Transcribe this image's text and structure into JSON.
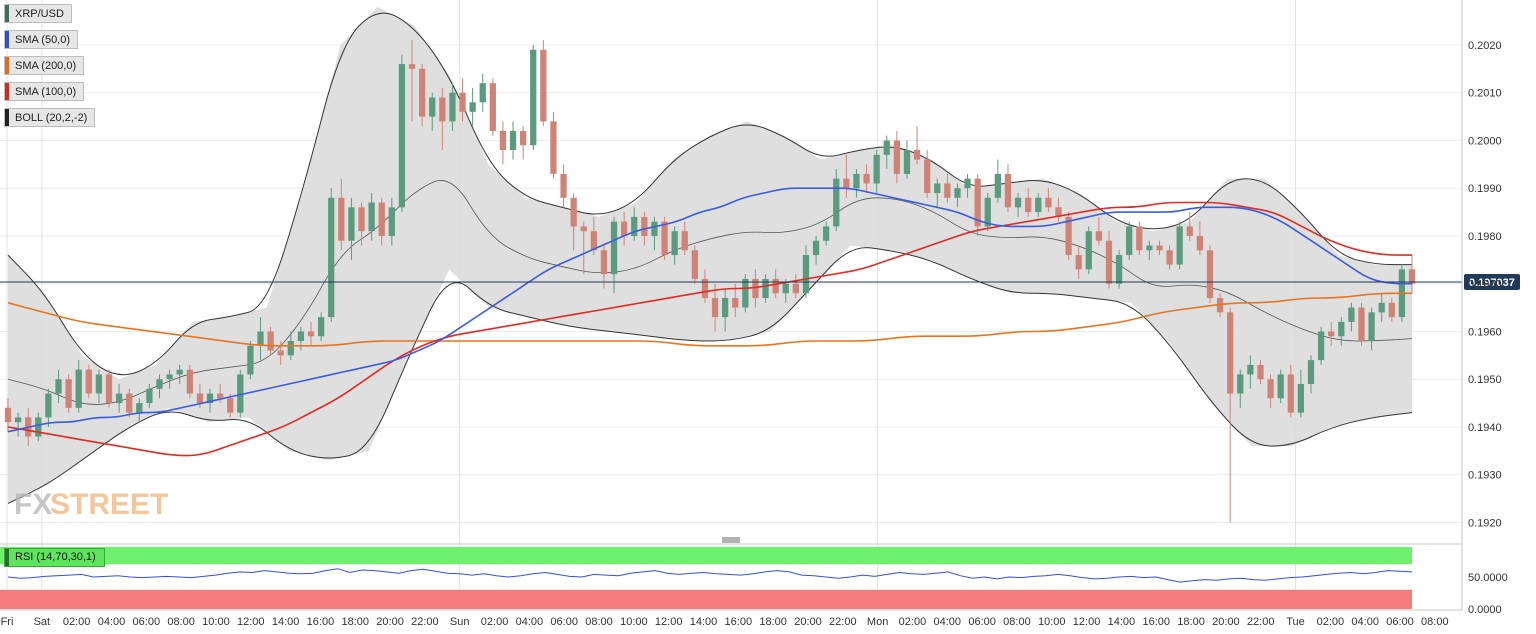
{
  "legend": [
    {
      "label": "XRP/USD",
      "color": "#3f6b57"
    },
    {
      "label": "SMA (50,0)",
      "color": "#2f4fd1"
    },
    {
      "label": "SMA (200,0)",
      "color": "#e36b1a"
    },
    {
      "label": "SMA (100,0)",
      "color": "#d9261c"
    },
    {
      "label": "BOLL (20,2,-2)",
      "color": "#222222"
    }
  ],
  "watermark": {
    "fx": "FX",
    "street": "STREET"
  },
  "rsi_label": "RSI (14,70,30,1)",
  "colors": {
    "up": "#5b9a7e",
    "down": "#cf8377",
    "sma50": "#3b5ce0",
    "sma100": "#e02a22",
    "sma200": "#e7751f",
    "boll": "#333333",
    "band_fill": "#d9d9d9",
    "rsi_line": "#3350d8",
    "rsi_over": "#6df06d",
    "rsi_under": "#f47c7c",
    "price_tag": "#203a5c"
  },
  "chart_data": {
    "type": "candlestick",
    "ylim": [
      0.1918,
      0.2029
    ],
    "yticks": [
      "0.2020",
      "0.2010",
      "0.2000",
      "0.1990",
      "0.1980",
      "0.1970",
      "0.1960",
      "0.1950",
      "0.1940",
      "0.1930",
      "0.1920"
    ],
    "current_price": "0.197037",
    "xticks": [
      "Fri",
      "Sat",
      "02:00",
      "04:00",
      "06:00",
      "08:00",
      "10:00",
      "12:00",
      "14:00",
      "16:00",
      "18:00",
      "20:00",
      "22:00",
      "Sun",
      "02:00",
      "04:00",
      "06:00",
      "08:00",
      "10:00",
      "12:00",
      "14:00",
      "16:00",
      "18:00",
      "20:00",
      "22:00",
      "Mon",
      "02:00",
      "04:00",
      "06:00",
      "08:00",
      "10:00",
      "12:00",
      "14:00",
      "16:00",
      "18:00",
      "20:00",
      "22:00",
      "Tue",
      "02:00",
      "04:00",
      "06:00",
      "08:00"
    ],
    "candles": [
      [
        0.1944,
        0.1946,
        0.1939,
        0.1941
      ],
      [
        0.1941,
        0.1943,
        0.1938,
        0.1942
      ],
      [
        0.1942,
        0.1944,
        0.1936,
        0.1938
      ],
      [
        0.1938,
        0.1943,
        0.1937,
        0.1942
      ],
      [
        0.1942,
        0.1948,
        0.194,
        0.1947
      ],
      [
        0.1947,
        0.1952,
        0.1945,
        0.195
      ],
      [
        0.195,
        0.1951,
        0.1943,
        0.1944
      ],
      [
        0.1944,
        0.1954,
        0.1943,
        0.1952
      ],
      [
        0.1952,
        0.1953,
        0.1946,
        0.1947
      ],
      [
        0.1947,
        0.1952,
        0.1945,
        0.1951
      ],
      [
        0.1951,
        0.1952,
        0.1944,
        0.1945
      ],
      [
        0.1945,
        0.1949,
        0.1943,
        0.1947
      ],
      [
        0.1947,
        0.1948,
        0.1942,
        0.1943
      ],
      [
        0.1943,
        0.1946,
        0.1941,
        0.1945
      ],
      [
        0.1945,
        0.1949,
        0.1944,
        0.1948
      ],
      [
        0.1948,
        0.1951,
        0.1946,
        0.195
      ],
      [
        0.195,
        0.1952,
        0.1948,
        0.1951
      ],
      [
        0.1951,
        0.1953,
        0.1949,
        0.1952
      ],
      [
        0.1952,
        0.1953,
        0.1946,
        0.1947
      ],
      [
        0.1947,
        0.1949,
        0.1944,
        0.1945
      ],
      [
        0.1945,
        0.1948,
        0.1943,
        0.1947
      ],
      [
        0.1947,
        0.1949,
        0.1945,
        0.1946
      ],
      [
        0.1946,
        0.1947,
        0.1942,
        0.1943
      ],
      [
        0.1943,
        0.1952,
        0.1942,
        0.1951
      ],
      [
        0.1951,
        0.1958,
        0.195,
        0.1957
      ],
      [
        0.1957,
        0.1963,
        0.1954,
        0.196
      ],
      [
        0.196,
        0.1961,
        0.1955,
        0.1956
      ],
      [
        0.1956,
        0.1958,
        0.1953,
        0.1955
      ],
      [
        0.1955,
        0.196,
        0.1954,
        0.1958
      ],
      [
        0.1958,
        0.1961,
        0.1956,
        0.196
      ],
      [
        0.196,
        0.1962,
        0.1957,
        0.1959
      ],
      [
        0.1959,
        0.1964,
        0.1958,
        0.1963
      ],
      [
        0.1963,
        0.199,
        0.1962,
        0.1988
      ],
      [
        0.1988,
        0.1992,
        0.1977,
        0.1979
      ],
      [
        0.1979,
        0.1988,
        0.1975,
        0.1986
      ],
      [
        0.1986,
        0.1987,
        0.1978,
        0.1981
      ],
      [
        0.1981,
        0.1989,
        0.1979,
        0.1987
      ],
      [
        0.1987,
        0.1988,
        0.1978,
        0.198
      ],
      [
        0.198,
        0.1988,
        0.1978,
        0.1986
      ],
      [
        0.1986,
        0.2018,
        0.1985,
        0.2016
      ],
      [
        0.2016,
        0.2021,
        0.2004,
        0.2015
      ],
      [
        0.2015,
        0.2016,
        0.2003,
        0.2005
      ],
      [
        0.2005,
        0.201,
        0.2002,
        0.2009
      ],
      [
        0.2009,
        0.2011,
        0.1998,
        0.2004
      ],
      [
        0.2004,
        0.2012,
        0.2002,
        0.201
      ],
      [
        0.201,
        0.2013,
        0.2004,
        0.2006
      ],
      [
        0.2006,
        0.2011,
        0.2003,
        0.2008
      ],
      [
        0.2008,
        0.2014,
        0.2006,
        0.2012
      ],
      [
        0.2012,
        0.2013,
        0.2001,
        0.2002
      ],
      [
        0.2002,
        0.2004,
        0.1995,
        0.1998
      ],
      [
        0.1998,
        0.2004,
        0.1996,
        0.2002
      ],
      [
        0.2002,
        0.2003,
        0.1996,
        0.1999
      ],
      [
        0.1999,
        0.202,
        0.1998,
        0.2019
      ],
      [
        0.2019,
        0.2021,
        0.2003,
        0.2004
      ],
      [
        0.2004,
        0.2006,
        0.1992,
        0.1993
      ],
      [
        0.1993,
        0.1995,
        0.1986,
        0.1988
      ],
      [
        0.1988,
        0.1989,
        0.1977,
        0.1982
      ],
      [
        0.1982,
        0.1983,
        0.1972,
        0.1981
      ],
      [
        0.1981,
        0.1984,
        0.1976,
        0.1977
      ],
      [
        0.1977,
        0.1978,
        0.1969,
        0.1972
      ],
      [
        0.1972,
        0.1984,
        0.1968,
        0.1983
      ],
      [
        0.1983,
        0.1985,
        0.1978,
        0.198
      ],
      [
        0.198,
        0.1986,
        0.1979,
        0.1984
      ],
      [
        0.1984,
        0.1985,
        0.1978,
        0.198
      ],
      [
        0.198,
        0.1984,
        0.1977,
        0.1983
      ],
      [
        0.1983,
        0.1984,
        0.1975,
        0.1976
      ],
      [
        0.1976,
        0.1982,
        0.1974,
        0.1981
      ],
      [
        0.1981,
        0.1983,
        0.1976,
        0.1977
      ],
      [
        0.1977,
        0.1978,
        0.197,
        0.1971
      ],
      [
        0.1971,
        0.1973,
        0.1966,
        0.1967
      ],
      [
        0.1967,
        0.197,
        0.196,
        0.1963
      ],
      [
        0.1963,
        0.1969,
        0.196,
        0.1967
      ],
      [
        0.1967,
        0.197,
        0.1963,
        0.1965
      ],
      [
        0.1965,
        0.1972,
        0.1964,
        0.1971
      ],
      [
        0.1971,
        0.1973,
        0.1965,
        0.1967
      ],
      [
        0.1967,
        0.1972,
        0.1966,
        0.1971
      ],
      [
        0.1971,
        0.1973,
        0.1967,
        0.1968
      ],
      [
        0.1968,
        0.1971,
        0.1966,
        0.197
      ],
      [
        0.197,
        0.1972,
        0.1967,
        0.1968
      ],
      [
        0.1968,
        0.1978,
        0.1967,
        0.1976
      ],
      [
        0.1976,
        0.198,
        0.1974,
        0.1979
      ],
      [
        0.1979,
        0.1983,
        0.1978,
        0.1982
      ],
      [
        0.1982,
        0.1994,
        0.1981,
        0.1992
      ],
      [
        0.1992,
        0.1997,
        0.1988,
        0.199
      ],
      [
        0.199,
        0.1994,
        0.1988,
        0.1993
      ],
      [
        0.1993,
        0.1995,
        0.1989,
        0.1991
      ],
      [
        0.1991,
        0.1998,
        0.1989,
        0.1997
      ],
      [
        0.1997,
        0.2001,
        0.1994,
        0.2
      ],
      [
        0.2,
        0.2002,
        0.1991,
        0.1993
      ],
      [
        0.1993,
        0.2,
        0.1992,
        0.1998
      ],
      [
        0.1998,
        0.2003,
        0.1995,
        0.1996
      ],
      [
        0.1996,
        0.1998,
        0.1988,
        0.1989
      ],
      [
        0.1989,
        0.1992,
        0.1986,
        0.1991
      ],
      [
        0.1991,
        0.1993,
        0.1987,
        0.1988
      ],
      [
        0.1988,
        0.1991,
        0.1986,
        0.199
      ],
      [
        0.199,
        0.1993,
        0.1988,
        0.1992
      ],
      [
        0.1992,
        0.1993,
        0.198,
        0.1982
      ],
      [
        0.1982,
        0.1989,
        0.1981,
        0.1988
      ],
      [
        0.1988,
        0.1996,
        0.1987,
        0.1993
      ],
      [
        0.1993,
        0.1995,
        0.1985,
        0.1986
      ],
      [
        0.1986,
        0.1989,
        0.1984,
        0.1988
      ],
      [
        0.1988,
        0.199,
        0.1984,
        0.1985
      ],
      [
        0.1985,
        0.1989,
        0.1984,
        0.1988
      ],
      [
        0.1988,
        0.199,
        0.1985,
        0.1986
      ],
      [
        0.1986,
        0.1988,
        0.1983,
        0.1984
      ],
      [
        0.1984,
        0.1985,
        0.1975,
        0.1976
      ],
      [
        0.1976,
        0.1978,
        0.1971,
        0.1973
      ],
      [
        0.1973,
        0.1982,
        0.1972,
        0.1981
      ],
      [
        0.1981,
        0.1984,
        0.1978,
        0.1979
      ],
      [
        0.1979,
        0.1981,
        0.1969,
        0.197
      ],
      [
        0.197,
        0.1977,
        0.1969,
        0.1976
      ],
      [
        0.1976,
        0.1983,
        0.1975,
        0.1982
      ],
      [
        0.1982,
        0.1983,
        0.1976,
        0.1977
      ],
      [
        0.1977,
        0.1979,
        0.1975,
        0.1978
      ],
      [
        0.1978,
        0.1979,
        0.1976,
        0.1977
      ],
      [
        0.1977,
        0.1978,
        0.1973,
        0.1974
      ],
      [
        0.1974,
        0.1983,
        0.1973,
        0.1982
      ],
      [
        0.1982,
        0.1985,
        0.1979,
        0.198
      ],
      [
        0.198,
        0.1983,
        0.1976,
        0.1977
      ],
      [
        0.1977,
        0.1978,
        0.1966,
        0.1967
      ],
      [
        0.1967,
        0.1968,
        0.1963,
        0.1964
      ],
      [
        0.1964,
        0.1965,
        0.192,
        0.1947
      ],
      [
        0.1947,
        0.1952,
        0.1944,
        0.1951
      ],
      [
        0.1951,
        0.1955,
        0.1948,
        0.1953
      ],
      [
        0.1953,
        0.1954,
        0.1949,
        0.195
      ],
      [
        0.195,
        0.1951,
        0.1944,
        0.1946
      ],
      [
        0.1946,
        0.1952,
        0.1945,
        0.1951
      ],
      [
        0.1951,
        0.1953,
        0.1942,
        0.1943
      ],
      [
        0.1943,
        0.1952,
        0.1942,
        0.1949
      ],
      [
        0.1949,
        0.1955,
        0.1947,
        0.1954
      ],
      [
        0.1954,
        0.1961,
        0.1953,
        0.196
      ],
      [
        0.196,
        0.1962,
        0.1957,
        0.1959
      ],
      [
        0.1959,
        0.1963,
        0.1957,
        0.1962
      ],
      [
        0.1962,
        0.1966,
        0.196,
        0.1965
      ],
      [
        0.1965,
        0.1966,
        0.1957,
        0.1958
      ],
      [
        0.1958,
        0.1965,
        0.1956,
        0.1964
      ],
      [
        0.1964,
        0.1968,
        0.1962,
        0.1966
      ],
      [
        0.1966,
        0.1967,
        0.1962,
        0.1963
      ],
      [
        0.1963,
        0.1974,
        0.1962,
        0.1973
      ],
      [
        0.1973,
        0.1976,
        0.1968,
        0.197
      ]
    ],
    "sma50": [
      0.1939,
      0.194,
      0.1941,
      0.1941,
      0.1942,
      0.1942,
      0.1943,
      0.1943,
      0.1944,
      0.1945,
      0.1946,
      0.1947,
      0.1948,
      0.1949,
      0.195,
      0.1951,
      0.1952,
      0.1953,
      0.1954,
      0.1956,
      0.1958,
      0.1961,
      0.1964,
      0.1967,
      0.197,
      0.1973,
      0.1975,
      0.1977,
      0.1979,
      0.1981,
      0.1982,
      0.1983,
      0.1985,
      0.1986,
      0.1988,
      0.1989,
      0.199,
      0.199,
      0.199,
      0.199,
      0.1989,
      0.1988,
      0.1987,
      0.1986,
      0.1985,
      0.1983,
      0.1982,
      0.1982,
      0.1982,
      0.1983,
      0.1984,
      0.1985,
      0.1985,
      0.1985,
      0.1985,
      0.1986,
      0.1986,
      0.1986,
      0.1985,
      0.1983,
      0.198,
      0.1977,
      0.1974,
      0.1971,
      0.197,
      0.197
    ],
    "sma100": [
      0.194,
      0.1939,
      0.1938,
      0.1937,
      0.1936,
      0.1935,
      0.1934,
      0.1934,
      0.1936,
      0.1938,
      0.194,
      0.1943,
      0.1946,
      0.195,
      0.1954,
      0.1957,
      0.1959,
      0.196,
      0.1961,
      0.1962,
      0.1963,
      0.1964,
      0.1965,
      0.1966,
      0.1967,
      0.1968,
      0.1969,
      0.1969,
      0.197,
      0.1971,
      0.1972,
      0.1973,
      0.1975,
      0.1977,
      0.1979,
      0.1981,
      0.1982,
      0.1983,
      0.1984,
      0.1985,
      0.1986,
      0.1986,
      0.1987,
      0.1987,
      0.1987,
      0.1986,
      0.1985,
      0.1982,
      0.1979,
      0.1977,
      0.1976,
      0.1976
    ],
    "sma200": [
      0.1966,
      0.1964,
      0.1962,
      0.1961,
      0.196,
      0.1959,
      0.1958,
      0.1957,
      0.1957,
      0.1957,
      0.1958,
      0.1958,
      0.1958,
      0.1958,
      0.1958,
      0.1958,
      0.1958,
      0.1958,
      0.1958,
      0.1957,
      0.1957,
      0.1957,
      0.1958,
      0.1958,
      0.1958,
      0.1959,
      0.1959,
      0.1959,
      0.196,
      0.196,
      0.1961,
      0.1962,
      0.1964,
      0.1965,
      0.1966,
      0.1966,
      0.1967,
      0.1967,
      0.1968,
      0.1968
    ],
    "boll_upper": [
      0.1976,
      0.1968,
      0.1955,
      0.195,
      0.1953,
      0.1962,
      0.1963,
      0.1965,
      0.199,
      0.202,
      0.2028,
      0.2024,
      0.2013,
      0.1995,
      0.1988,
      0.1986,
      0.1984,
      0.1987,
      0.1996,
      0.2001,
      0.2004,
      0.2001,
      0.1996,
      0.1998,
      0.1999,
      0.1996,
      0.199,
      0.1991,
      0.1992,
      0.1989,
      0.1983,
      0.1981,
      0.1983,
      0.1992,
      0.1992,
      0.1985,
      0.1976,
      0.1974,
      0.1974
    ],
    "boll_lower": [
      0.1924,
      0.1928,
      0.1934,
      0.194,
      0.1944,
      0.1941,
      0.1942,
      0.1935,
      0.1933,
      0.1935,
      0.1955,
      0.1973,
      0.1965,
      0.1963,
      0.1961,
      0.196,
      0.1959,
      0.1958,
      0.1958,
      0.196,
      0.1969,
      0.1978,
      0.1977,
      0.1975,
      0.1971,
      0.1968,
      0.1968,
      0.1967,
      0.1966,
      0.1957,
      0.1945,
      0.1936,
      0.1936,
      0.194,
      0.1942,
      0.1943
    ],
    "rsi": [
      50,
      48,
      49,
      51,
      52,
      53,
      54,
      50,
      51,
      52,
      50,
      49,
      50,
      51,
      50,
      49,
      51,
      53,
      56,
      58,
      57,
      60,
      58,
      56,
      55,
      56,
      60,
      63,
      57,
      61,
      60,
      58,
      56,
      60,
      62,
      59,
      56,
      55,
      53,
      55,
      52,
      50,
      52,
      55,
      57,
      54,
      51,
      50,
      54,
      53,
      52,
      56,
      58,
      60,
      56,
      54,
      56,
      57,
      55,
      54,
      53,
      55,
      58,
      60,
      58,
      53,
      52,
      50,
      48,
      50,
      53,
      51,
      54,
      57,
      55,
      54,
      56,
      58,
      52,
      48,
      50,
      47,
      50,
      49,
      51,
      52,
      54,
      52,
      49,
      47,
      48,
      50,
      51,
      49,
      50,
      46,
      42,
      44,
      46,
      45,
      47,
      48,
      46,
      45,
      47,
      49,
      50,
      52,
      54,
      56,
      57,
      55,
      57,
      60,
      59,
      58
    ],
    "rsi_yticks": [
      "50.0000",
      "0.0000"
    ]
  }
}
